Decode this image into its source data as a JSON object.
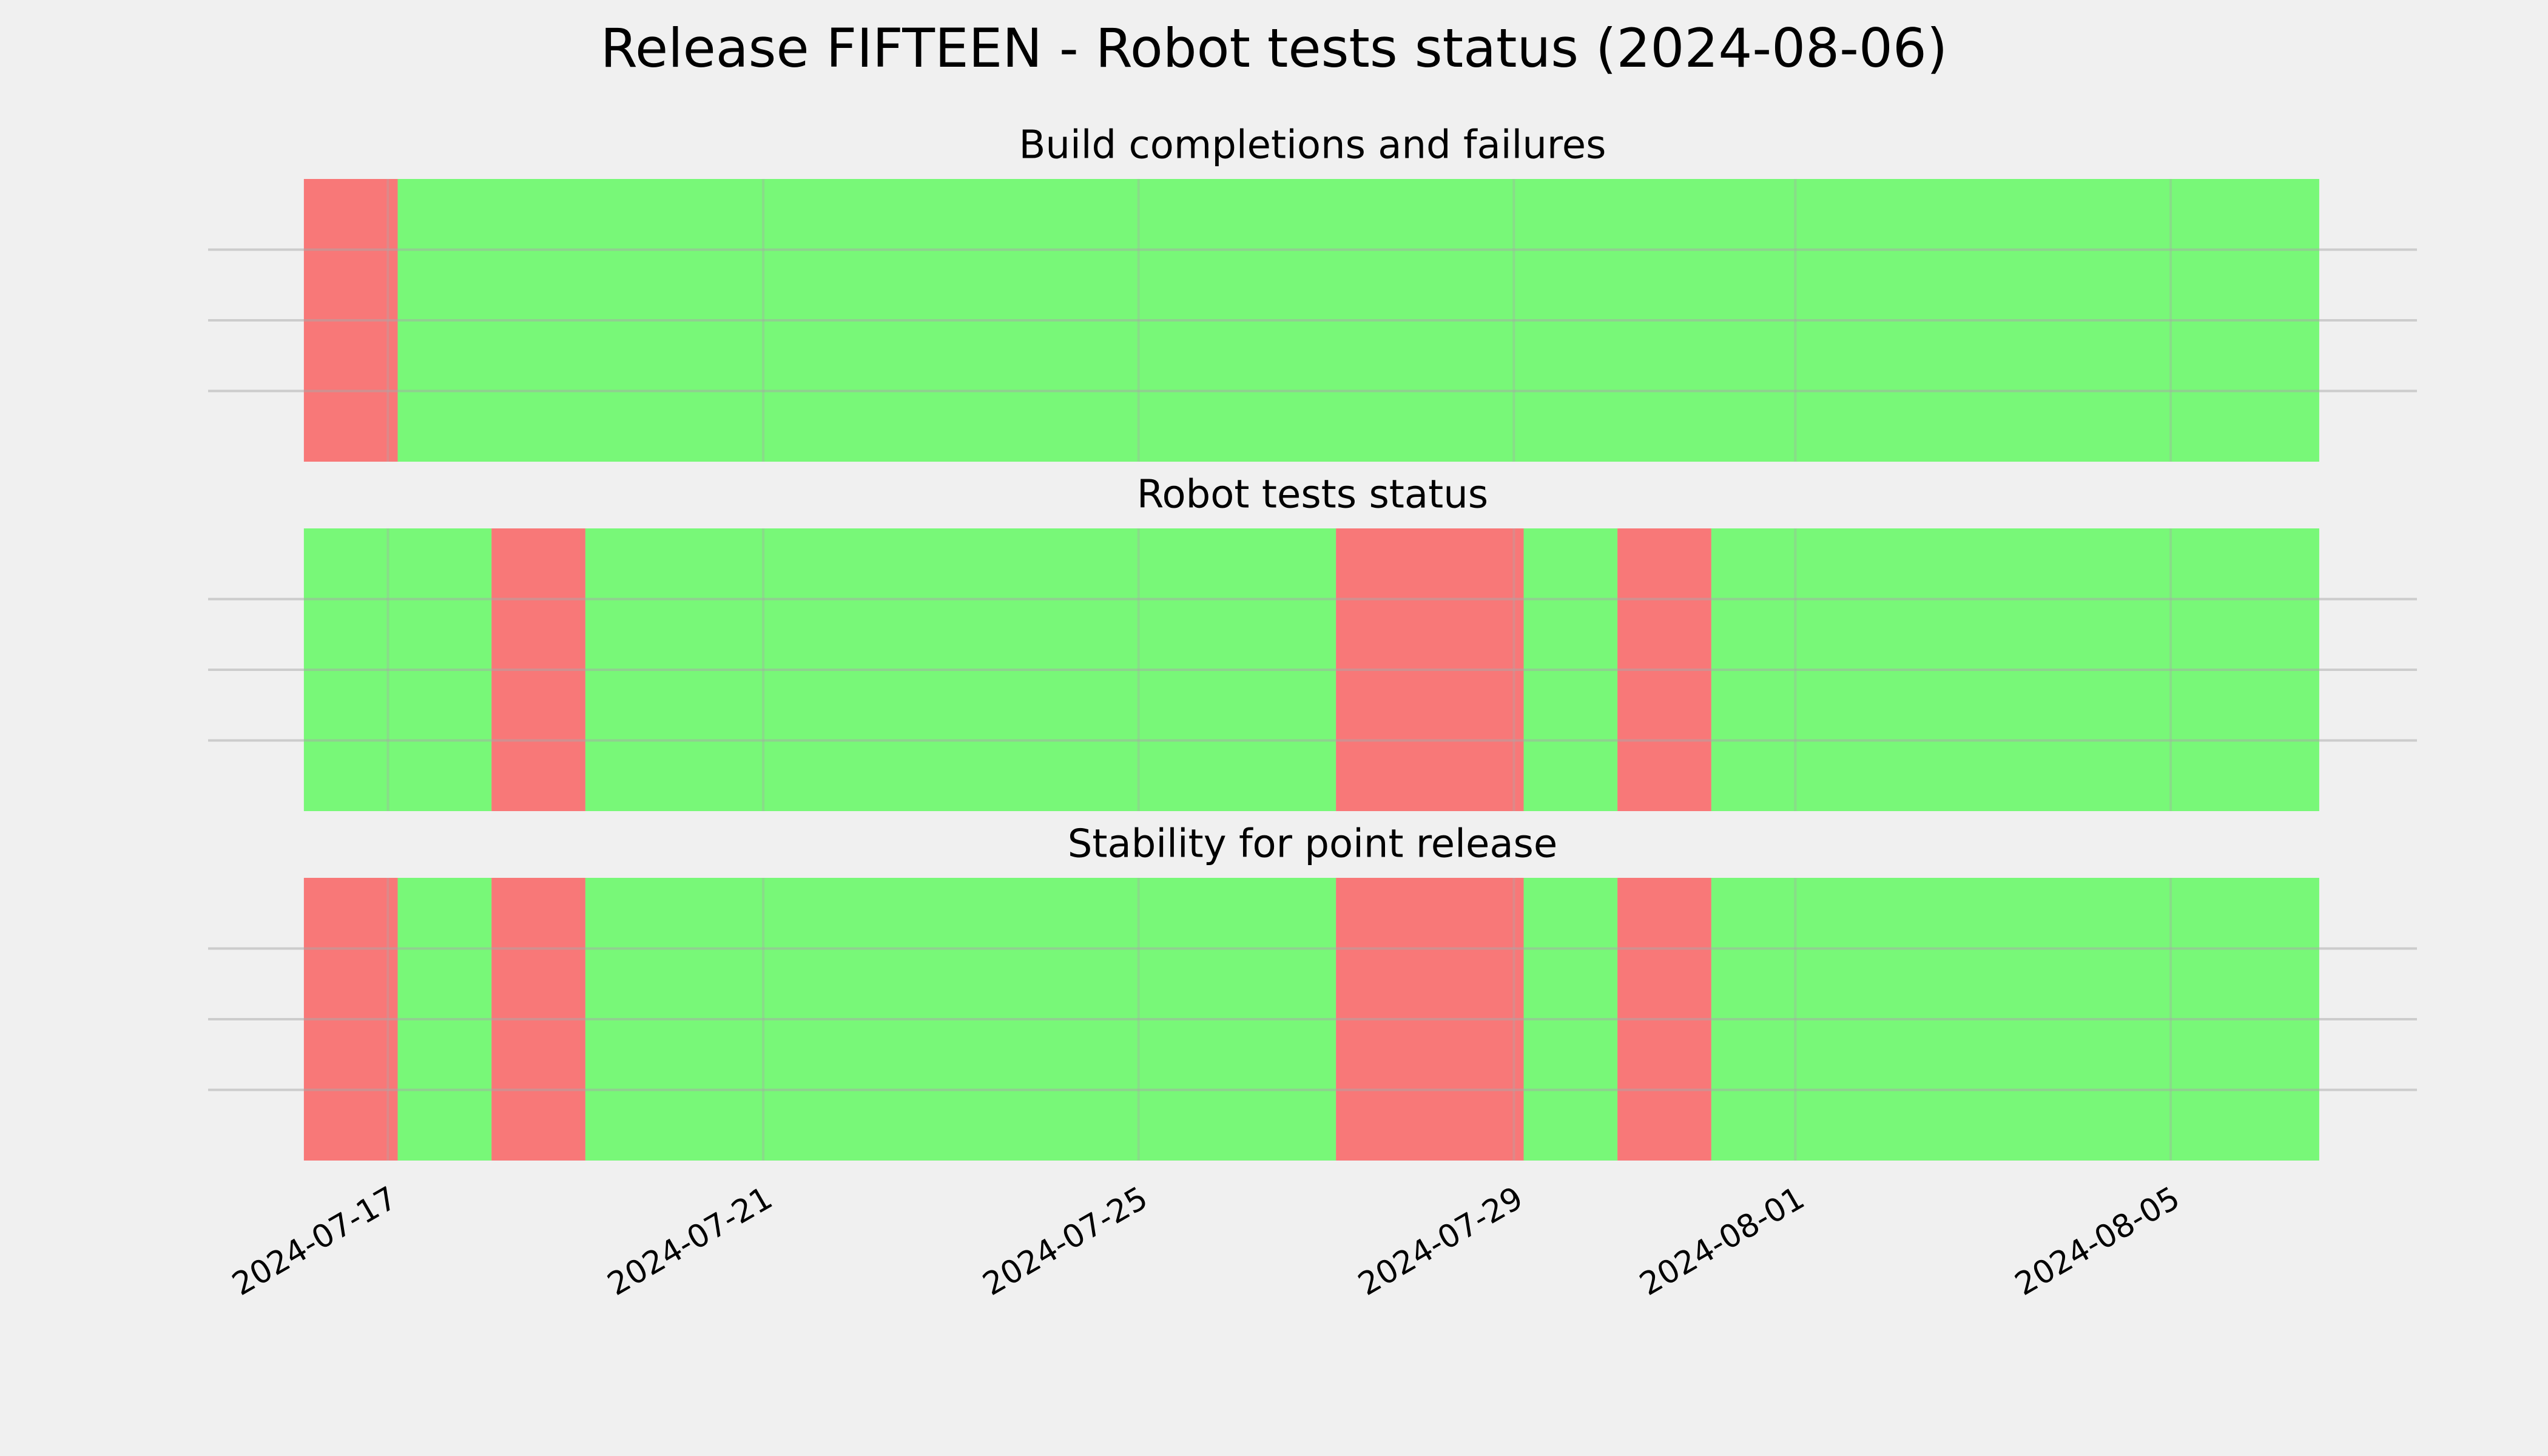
{
  "title": "Release FIFTEEN - Robot tests status (2024-08-06)",
  "chart_data": [
    {
      "type": "timeline",
      "title": "Build completions and failures",
      "xlim": [
        "2024-07-15T02:00",
        "2024-08-07T15:00"
      ],
      "xticks": [
        "2024-07-17",
        "2024-07-21",
        "2024-07-25",
        "2024-07-29",
        "2024-08-01",
        "2024-08-05"
      ],
      "ylim": [
        0,
        1
      ],
      "yticks": [
        0.25,
        0.5,
        0.75
      ],
      "grid": true,
      "alpha": 0.5,
      "spans": [
        {
          "start": "2024-07-16T02:30",
          "end": "2024-07-17T02:30",
          "color": "#ff0000"
        },
        {
          "start": "2024-07-17T02:30",
          "end": "2024-08-06T14:00",
          "color": "#00ff00"
        }
      ]
    },
    {
      "type": "timeline",
      "title": "Robot tests status",
      "xlim": [
        "2024-07-15T02:00",
        "2024-08-07T15:00"
      ],
      "xticks": [
        "2024-07-17",
        "2024-07-21",
        "2024-07-25",
        "2024-07-29",
        "2024-08-01",
        "2024-08-05"
      ],
      "ylim": [
        0,
        1
      ],
      "yticks": [
        0.25,
        0.5,
        0.75
      ],
      "grid": true,
      "alpha": 0.5,
      "spans": [
        {
          "start": "2024-07-16T02:30",
          "end": "2024-07-18T02:30",
          "color": "#00ff00"
        },
        {
          "start": "2024-07-18T02:30",
          "end": "2024-07-19T02:30",
          "color": "#ff0000"
        },
        {
          "start": "2024-07-19T02:30",
          "end": "2024-07-27T02:30",
          "color": "#00ff00"
        },
        {
          "start": "2024-07-27T02:30",
          "end": "2024-07-29T02:30",
          "color": "#ff0000"
        },
        {
          "start": "2024-07-29T02:30",
          "end": "2024-07-30T02:30",
          "color": "#00ff00"
        },
        {
          "start": "2024-07-30T02:30",
          "end": "2024-07-31T02:30",
          "color": "#ff0000"
        },
        {
          "start": "2024-07-31T02:30",
          "end": "2024-08-06T14:00",
          "color": "#00ff00"
        }
      ]
    },
    {
      "type": "timeline",
      "title": "Stability for point release",
      "xlim": [
        "2024-07-15T02:00",
        "2024-08-07T15:00"
      ],
      "xticks": [
        "2024-07-17",
        "2024-07-21",
        "2024-07-25",
        "2024-07-29",
        "2024-08-01",
        "2024-08-05"
      ],
      "ylim": [
        0,
        1
      ],
      "yticks": [
        0.25,
        0.5,
        0.75
      ],
      "grid": true,
      "alpha": 0.5,
      "show_xtick_labels": true,
      "spans": [
        {
          "start": "2024-07-16T02:30",
          "end": "2024-07-17T02:30",
          "color": "#ff0000"
        },
        {
          "start": "2024-07-17T02:30",
          "end": "2024-07-18T02:30",
          "color": "#00ff00"
        },
        {
          "start": "2024-07-18T02:30",
          "end": "2024-07-19T02:30",
          "color": "#ff0000"
        },
        {
          "start": "2024-07-19T02:30",
          "end": "2024-07-27T02:30",
          "color": "#00ff00"
        },
        {
          "start": "2024-07-27T02:30",
          "end": "2024-07-29T02:30",
          "color": "#ff0000"
        },
        {
          "start": "2024-07-29T02:30",
          "end": "2024-07-30T02:30",
          "color": "#00ff00"
        },
        {
          "start": "2024-07-30T02:30",
          "end": "2024-07-31T02:30",
          "color": "#ff0000"
        },
        {
          "start": "2024-07-31T02:30",
          "end": "2024-08-06T14:00",
          "color": "#00ff00"
        }
      ]
    }
  ]
}
